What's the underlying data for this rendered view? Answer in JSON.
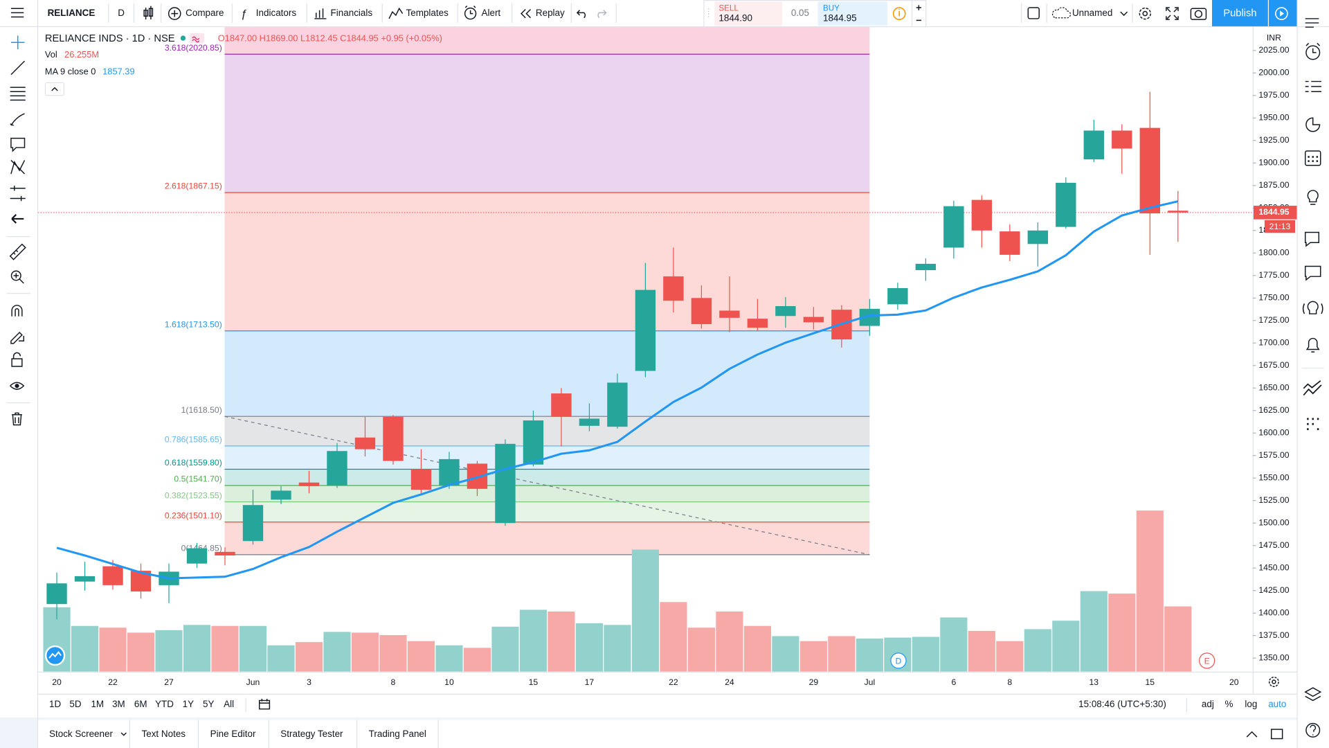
{
  "chart_data": {
    "type": "candlestick",
    "categories": [
      "20",
      null,
      "22",
      null,
      "27",
      null,
      null,
      "Jun",
      null,
      "3",
      null,
      null,
      "8",
      null,
      "10",
      null,
      null,
      "15",
      null,
      "17",
      null,
      null,
      "22",
      null,
      "24",
      null,
      null,
      "29",
      null,
      "Jul",
      null,
      null,
      "6",
      null,
      "8",
      null,
      null,
      "13",
      null,
      "15",
      null,
      null,
      "20"
    ],
    "candles": {
      "open": [
        1410,
        1435,
        1452,
        1447,
        1431,
        1455,
        1468,
        1480,
        1526,
        1545,
        1542,
        1595,
        1618,
        1560,
        1542,
        1566,
        1500,
        1565,
        1644,
        1608,
        1607,
        1669,
        1774,
        1750,
        1736,
        1727,
        1730,
        1729,
        1737,
        1719,
        1743,
        1781,
        1806,
        1859,
        1824,
        1810,
        1829,
        1904,
        1936,
        1939,
        1847,
        null,
        null
      ],
      "high": [
        1445,
        1457,
        1459,
        1455,
        1455,
        1478,
        1473,
        1537,
        1541,
        1558,
        1589,
        1618,
        1620,
        1582,
        1579,
        1569,
        1593,
        1625,
        1650,
        1633,
        1666,
        1789,
        1806,
        1764,
        1774,
        1749,
        1751,
        1740,
        1742,
        1749,
        1767,
        1794,
        1858,
        1864,
        1832,
        1834,
        1884,
        1948,
        1943,
        1979,
        1869,
        null,
        null
      ],
      "low": [
        1393,
        1425,
        1426,
        1416,
        1411,
        1450,
        1453,
        1476,
        1521,
        1533,
        1539,
        1574,
        1565,
        1533,
        1538,
        1530,
        1497,
        1563,
        1585,
        1602,
        1605,
        1662,
        1734,
        1716,
        1712,
        1714,
        1717,
        1715,
        1695,
        1708,
        1737,
        1769,
        1794,
        1806,
        1791,
        1785,
        1827,
        1901,
        1888,
        1798,
        1812.45,
        null,
        null
      ],
      "close": [
        1433,
        1441,
        1431,
        1424,
        1446,
        1472,
        1464,
        1520,
        1536,
        1541,
        1580,
        1582,
        1569,
        1537,
        1571,
        1538,
        1588,
        1614,
        1618,
        1616,
        1656,
        1759,
        1747,
        1721,
        1728,
        1717,
        1741,
        1723,
        1704,
        1738,
        1761,
        1788,
        1852,
        1825,
        1798,
        1825,
        1878,
        1936,
        1916,
        1844,
        1844.95,
        null,
        null
      ],
      "up_color": "#26a69a",
      "down_color": "#ef5350"
    },
    "volume": {
      "values": [
        25.9,
        18.4,
        17.7,
        15.7,
        16.7,
        18.8,
        18.4,
        18.4,
        10.6,
        11.9,
        16.0,
        15.7,
        14.7,
        12.3,
        10.6,
        9.6,
        18.1,
        24.9,
        24.2,
        19.5,
        18.8,
        49.1,
        28.0,
        17.7,
        24.2,
        18.4,
        14.3,
        12.3,
        14.3,
        13.3,
        13.7,
        14.0,
        21.8,
        16.4,
        12.3,
        17.1,
        20.5,
        32.4,
        31.4,
        64.8,
        26.255,
        null,
        null
      ],
      "up_color": "#93d2cc",
      "down_color": "#f7a9a7"
    },
    "series": [
      {
        "name": "MA 9 close 0",
        "color": "#2196f3",
        "values": [
          1472.5,
          1464,
          1454.5,
          1445,
          1438.6,
          1439.5,
          1440.4,
          1449,
          1462,
          1473.4,
          1490.4,
          1506.4,
          1522.4,
          1531.8,
          1542.2,
          1550.7,
          1560.1,
          1567.6,
          1577,
          1580.8,
          1590.2,
          1612.8,
          1634.5,
          1650.5,
          1671.3,
          1687.2,
          1700.4,
          1710.8,
          1721.2,
          1730.6,
          1731.5,
          1736.2,
          1750.4,
          1761.7,
          1770.2,
          1779.6,
          1797.5,
          1823.8,
          1841.7,
          1850.2,
          1857.39,
          null,
          null
        ]
      }
    ],
    "fib": {
      "levels": [
        {
          "level": 0,
          "price": 1464.85,
          "label": "0(1464.85)",
          "color": "#787b86"
        },
        {
          "level": 0.236,
          "price": 1501.1,
          "label": "0.236(1501.10)",
          "color": "#f44336"
        },
        {
          "level": 0.382,
          "price": 1523.55,
          "label": "0.382(1523.55)",
          "color": "#81c784"
        },
        {
          "level": 0.5,
          "price": 1541.7,
          "label": "0.5(1541.70)",
          "color": "#4caf50"
        },
        {
          "level": 0.618,
          "price": 1559.8,
          "label": "0.618(1559.80)",
          "color": "#009688"
        },
        {
          "level": 0.786,
          "price": 1585.65,
          "label": "0.786(1585.65)",
          "color": "#64b5f6"
        },
        {
          "level": 1,
          "price": 1618.5,
          "label": "1(1618.50)",
          "color": "#787b86"
        },
        {
          "level": 1.618,
          "price": 1713.5,
          "label": "1.618(1713.50)",
          "color": "#2196f3"
        },
        {
          "level": 2.618,
          "price": 1867.15,
          "label": "2.618(1867.15)",
          "color": "#f44336"
        },
        {
          "level": 3.618,
          "price": 2020.85,
          "label": "3.618(2020.85)",
          "color": "#9c27b0"
        }
      ]
    },
    "ylim": [
      1334.9,
      2050.9
    ],
    "yticks": [
      {
        "value": 1350,
        "label": "1350.00"
      },
      {
        "value": 1375,
        "label": "1375.00"
      },
      {
        "value": 1400,
        "label": "1400.00"
      },
      {
        "value": 1425,
        "label": "1425.00"
      },
      {
        "value": 1450,
        "label": "1450.00"
      },
      {
        "value": 1475,
        "label": "1475.00"
      },
      {
        "value": 1500,
        "label": "1500.00"
      },
      {
        "value": 1525,
        "label": "1525.00"
      },
      {
        "value": 1550,
        "label": "1550.00"
      },
      {
        "value": 1575,
        "label": "1575.00"
      },
      {
        "value": 1600,
        "label": "1600.00"
      },
      {
        "value": 1625,
        "label": "1625.00"
      },
      {
        "value": 1650,
        "label": "1650.00"
      },
      {
        "value": 1675,
        "label": "1675.00"
      },
      {
        "value": 1700,
        "label": "1700.00"
      },
      {
        "value": 1725,
        "label": "1725.00"
      },
      {
        "value": 1750,
        "label": "1750.00"
      },
      {
        "value": 1775,
        "label": "1775.00"
      },
      {
        "value": 1800,
        "label": "1800.00"
      },
      {
        "value": 1825,
        "label": "1825.00"
      },
      {
        "value": 1850,
        "label": "1850.00"
      },
      {
        "value": 1875,
        "label": "1875.00"
      },
      {
        "value": 1900,
        "label": "1900.00"
      },
      {
        "value": 1925,
        "label": "1925.00"
      },
      {
        "value": 1950,
        "label": "1950.00"
      },
      {
        "value": 1975,
        "label": "1975.00"
      },
      {
        "value": 2000,
        "label": "2000.00"
      },
      {
        "value": 2025,
        "label": "2025.00"
      }
    ],
    "grid": false
  },
  "toolbar": {
    "symbol": "RELIANCE",
    "interval": "D",
    "compare": "Compare",
    "indicators": "Indicators",
    "financials": "Financials",
    "templates": "Templates",
    "alert": "Alert",
    "replay": "Replay",
    "layout_name": "Unnamed",
    "publish": "Publish"
  },
  "trade": {
    "sell_label": "SELL",
    "sell_price": "1844.90",
    "spread": "0.05",
    "buy_label": "BUY",
    "buy_price": "1844.95"
  },
  "legend": {
    "symbol": "RELIANCE INDS · 1D · NSE",
    "ohlc": "O1847.00 H1869.00 L1812.45 C1844.95 +0.95 (+0.05%)",
    "vol_label": "Vol",
    "vol_value": "26.255M",
    "ma_value": "1857.39"
  },
  "price_axis": {
    "currency": "INR",
    "last_price": "1844.95",
    "countdown": "21:13"
  },
  "markers": {
    "dividend": "D",
    "earnings": "E"
  },
  "ranges": [
    "1D",
    "5D",
    "1M",
    "3M",
    "6M",
    "YTD",
    "1Y",
    "5Y",
    "All"
  ],
  "clock": "15:08:46 (UTC+5:30)",
  "scale_options": [
    "adj",
    "%",
    "log",
    "auto"
  ],
  "tabs": [
    "Stock Screener",
    "Text Notes",
    "Pine Editor",
    "Strategy Tester",
    "Trading Panel"
  ]
}
